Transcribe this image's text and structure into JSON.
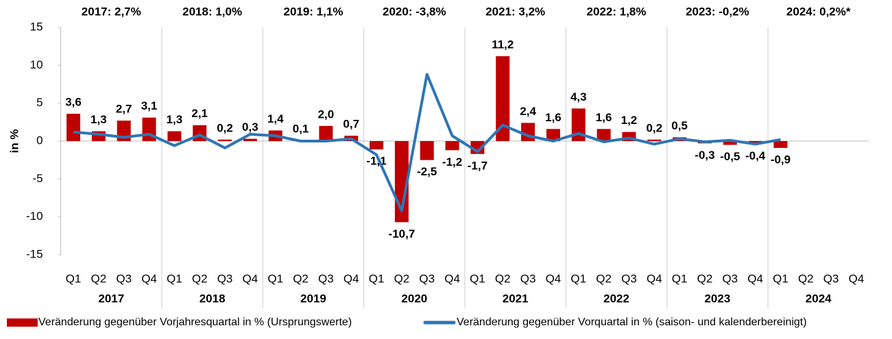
{
  "chart_data": {
    "type": "bar_line",
    "y_axis_label": "in %",
    "annotations": [
      "2017: 2,7%",
      "2018: 1,0%",
      "2019: 1,1%",
      "2020: -3,8%",
      "2021: 3,2%",
      "2022: 1,8%",
      "2023: -0,2%",
      "2024: 0,2%*"
    ],
    "categories": [
      "Q1",
      "Q2",
      "Q3",
      "Q4",
      "Q1",
      "Q2",
      "Q3",
      "Q4",
      "Q1",
      "Q2",
      "Q3",
      "Q4",
      "Q1",
      "Q2",
      "Q3",
      "Q4",
      "Q1",
      "Q2",
      "Q3",
      "Q4",
      "Q1",
      "Q2",
      "Q3",
      "Q4",
      "Q1",
      "Q2",
      "Q3",
      "Q4",
      "Q1",
      "Q2",
      "Q3",
      "Q4"
    ],
    "groups": [
      "2017",
      "2018",
      "2019",
      "2020",
      "2021",
      "2022",
      "2023",
      "2024"
    ],
    "series": [
      {
        "name": "Veränderung gegenüber Vorjahresquartal in % (Ursprungswerte)",
        "type": "bar",
        "color": "#c00000",
        "values": [
          3.6,
          1.3,
          2.7,
          3.1,
          1.3,
          2.1,
          0.2,
          0.3,
          1.4,
          0.1,
          2.0,
          0.7,
          -1.1,
          -10.7,
          -2.5,
          -1.2,
          -1.7,
          11.2,
          2.4,
          1.6,
          4.3,
          1.6,
          1.2,
          0.2,
          0.5,
          -0.3,
          -0.5,
          -0.4,
          -0.9,
          null,
          null,
          null
        ],
        "value_labels": [
          "3,6",
          "1,3",
          "2,7",
          "3,1",
          "1,3",
          "2,1",
          "0,2",
          "0,3",
          "1,4",
          "0,1",
          "2,0",
          "0,7",
          "-1,1",
          "-10,7",
          "-2,5",
          "-1,2",
          "-1,7",
          "11,2",
          "2,4",
          "1,6",
          "4,3",
          "1,6",
          "1,2",
          "0,2",
          "0,5",
          "-0,3",
          "-0,5",
          "-0,4",
          "-0,9",
          null,
          null,
          null
        ]
      },
      {
        "name": "Veränderung gegenüber Vorquartal in % (saison- und kalenderbereinigt)",
        "type": "line",
        "color": "#2e75b6",
        "values": [
          1.2,
          0.9,
          0.5,
          0.9,
          -0.6,
          0.8,
          -0.9,
          0.9,
          0.7,
          0.0,
          0.0,
          0.3,
          -1.8,
          -9.2,
          8.8,
          0.7,
          -1.4,
          2.1,
          0.7,
          0.0,
          1.0,
          -0.1,
          0.4,
          -0.4,
          0.3,
          -0.1,
          0.1,
          -0.4,
          0.2,
          null,
          null,
          null
        ]
      }
    ],
    "ylim": [
      -15,
      15
    ],
    "yticks": [
      -15,
      -10,
      -5,
      0,
      5,
      10,
      15
    ],
    "legend": "bottom"
  }
}
